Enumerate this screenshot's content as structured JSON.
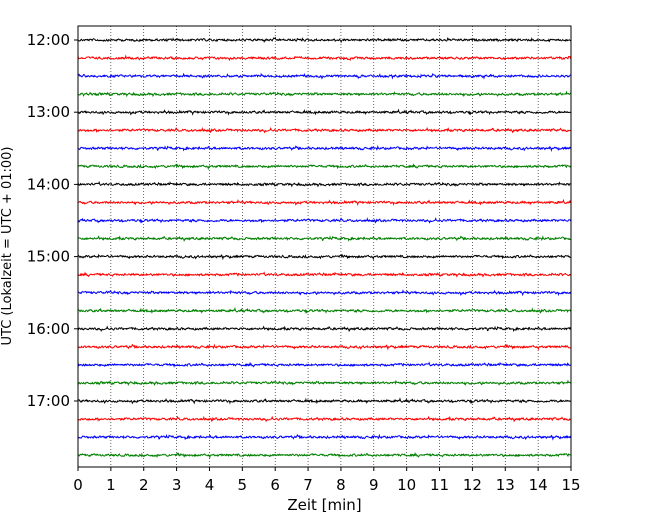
{
  "chart_data": {
    "type": "line",
    "xlabel": "Zeit  [min]",
    "ylabel": "UTC (Lokalzeit = UTC + 01:00)",
    "xlim": [
      0,
      15
    ],
    "x_ticks": [
      "0",
      "1",
      "2",
      "3",
      "4",
      "5",
      "6",
      "7",
      "8",
      "9",
      "10",
      "11",
      "12",
      "13",
      "14",
      "15"
    ],
    "y_ticks": [
      "12:00",
      "13:00",
      "14:00",
      "15:00",
      "16:00",
      "17:00"
    ],
    "trace_interval_minutes": 15,
    "first_trace": "12:00",
    "trace_count": 24,
    "trace_colors": [
      "#000000",
      "#ff0000",
      "#0000ff",
      "#008000"
    ],
    "vertical_grid": "dotted",
    "series": [
      {
        "start": "12:00",
        "color": "#000000"
      },
      {
        "start": "12:15",
        "color": "#ff0000"
      },
      {
        "start": "12:30",
        "color": "#0000ff"
      },
      {
        "start": "12:45",
        "color": "#008000"
      },
      {
        "start": "13:00",
        "color": "#000000"
      },
      {
        "start": "13:15",
        "color": "#ff0000"
      },
      {
        "start": "13:30",
        "color": "#0000ff"
      },
      {
        "start": "13:45",
        "color": "#008000"
      },
      {
        "start": "14:00",
        "color": "#000000"
      },
      {
        "start": "14:15",
        "color": "#ff0000"
      },
      {
        "start": "14:30",
        "color": "#0000ff"
      },
      {
        "start": "14:45",
        "color": "#008000"
      },
      {
        "start": "15:00",
        "color": "#000000"
      },
      {
        "start": "15:15",
        "color": "#ff0000"
      },
      {
        "start": "15:30",
        "color": "#0000ff"
      },
      {
        "start": "15:45",
        "color": "#008000"
      },
      {
        "start": "16:00",
        "color": "#000000"
      },
      {
        "start": "16:15",
        "color": "#ff0000"
      },
      {
        "start": "16:30",
        "color": "#0000ff"
      },
      {
        "start": "16:45",
        "color": "#008000"
      },
      {
        "start": "17:00",
        "color": "#000000"
      },
      {
        "start": "17:15",
        "color": "#ff0000"
      },
      {
        "start": "17:30",
        "color": "#0000ff"
      },
      {
        "start": "17:45",
        "color": "#008000"
      }
    ]
  }
}
